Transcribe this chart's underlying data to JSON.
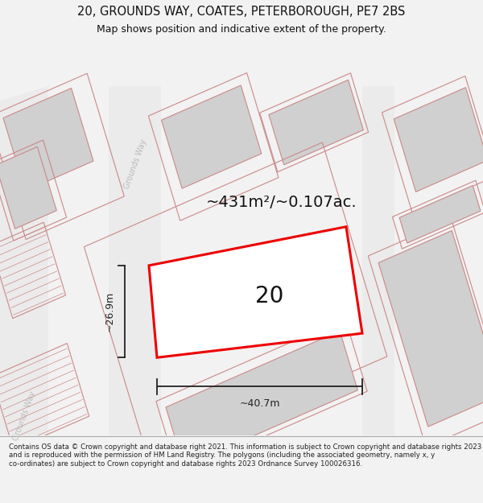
{
  "title_line1": "20, GROUNDS WAY, COATES, PETERBOROUGH, PE7 2BS",
  "title_line2": "Map shows position and indicative extent of the property.",
  "footer_text": "Contains OS data © Crown copyright and database right 2021. This information is subject to Crown copyright and database rights 2023 and is reproduced with the permission of HM Land Registry. The polygons (including the associated geometry, namely x, y co-ordinates) are subject to Crown copyright and database rights 2023 Ordnance Survey 100026316.",
  "area_label": "~431m²/~0.107ac.",
  "property_number": "20",
  "width_label": "~40.7m",
  "height_label": "~26.9m",
  "street_label1": "Grounds Way",
  "street_label2": "Grounds Way",
  "bg_color": "#f2f2f2",
  "map_bg": "#ffffff",
  "plot_color": "#ee0000",
  "building_fill": "#d0d0d0",
  "building_stroke": "#cc8888",
  "dim_color": "#222222",
  "title_color": "#111111",
  "footer_color": "#222222",
  "footer_bg": "#f2f2f2",
  "title_fontsize": 10.5,
  "subtitle_fontsize": 9.0,
  "area_fontsize": 14,
  "number_fontsize": 20,
  "dim_fontsize": 9,
  "street_fontsize": 7
}
